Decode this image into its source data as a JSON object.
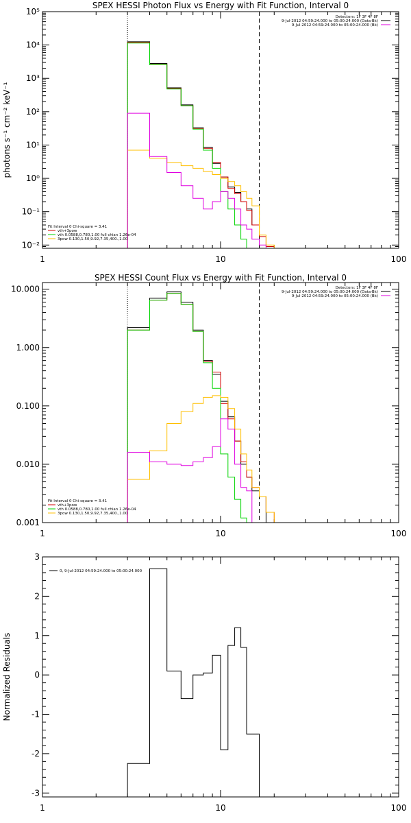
{
  "colors": {
    "data_total": "#000000",
    "data_black": "#000000",
    "model_total": "#d40000",
    "vth": "#00d400",
    "bpow": "#ffbf00",
    "other": "#e000e0",
    "background": "#ffffff"
  },
  "chart_data": [
    {
      "type": "line",
      "subtype": "step",
      "title": "SPEX HESSI Photon Flux vs Energy with Fit Function, Interval 0",
      "xlabel": "",
      "ylabel": "photons s⁻¹ cm⁻² keV⁻¹",
      "xscale": "log",
      "yscale": "log",
      "xlim": [
        1,
        100
      ],
      "ylim": [
        0.008,
        100000
      ],
      "x_ticks": [
        "1",
        "10",
        "100"
      ],
      "y_ticks": [
        "10⁻²",
        "10⁻¹",
        "10⁰",
        "10¹",
        "10²",
        "10³",
        "10⁴",
        "10⁵"
      ],
      "y_tick_values": [
        0.01,
        0.1,
        1,
        10,
        100,
        1000,
        10000,
        100000
      ],
      "vlines": [
        {
          "x": 3.0,
          "style": "dotted"
        },
        {
          "x": 16.5,
          "style": "dashed"
        }
      ],
      "edges": [
        3.0,
        4.0,
        5.0,
        6.0,
        7.0,
        8.0,
        9.0,
        10.0,
        11.0,
        12.0,
        13.0,
        14.0,
        15.0,
        16.5,
        18.0,
        20.0
      ],
      "series": [
        {
          "color_key": "data_black",
          "values": [
            12500,
            2800,
            520,
            160,
            33,
            8.5,
            2.8,
            1.1,
            0.55,
            0.38,
            0.2,
            0.12,
            0.04,
            null,
            null
          ]
        },
        {
          "color_key": "model_total",
          "values": [
            12000,
            2600,
            500,
            150,
            31,
            8.0,
            3.0,
            1.1,
            0.5,
            0.35,
            0.2,
            0.11,
            0.04,
            0.018,
            0.009
          ]
        },
        {
          "color_key": "vth",
          "values": [
            11500,
            2550,
            480,
            150,
            30,
            7.0,
            2.0,
            0.4,
            0.12,
            0.04,
            0.015,
            null,
            null,
            null,
            null
          ]
        },
        {
          "color_key": "bpow",
          "values": [
            7.0,
            4.0,
            3.0,
            2.4,
            2.0,
            1.6,
            1.3,
            1.0,
            0.8,
            0.6,
            0.4,
            0.25,
            0.15,
            0.02,
            0.01
          ]
        },
        {
          "color_key": "other",
          "values": [
            90,
            4.5,
            1.5,
            0.6,
            0.25,
            0.12,
            0.2,
            0.4,
            0.25,
            0.12,
            0.04,
            0.03,
            0.015,
            0.01,
            null
          ]
        }
      ],
      "legend_top": [
        {
          "text": "Detectors: 1F 3F 4F 8F",
          "color_key": null
        },
        {
          "text": "9-Jul-2012 04:59:24.000 to 05:00:24.000 (Data-Bk)",
          "color_key": "data_black"
        },
        {
          "text": "9-Jul-2012 04:59:24.000 to 05:00:24.000 (Bk)",
          "color_key": "other"
        }
      ],
      "legend_bottom": [
        {
          "text": "Fit Interval 0   Chi-square = 3.41",
          "color_key": null
        },
        {
          "text": "vth+3pow",
          "color_key": "model_total"
        },
        {
          "text": "vth 0.0588,0.780,1.00  full chian 1.26e-04",
          "color_key": "vth"
        },
        {
          "text": "3pow 0.130,1.50,9.92,7.35,400.,1.00",
          "color_key": "bpow"
        }
      ]
    },
    {
      "type": "line",
      "subtype": "step",
      "title": "SPEX HESSI Count Flux vs Energy with Fit Function, Interval 0",
      "xlabel": "",
      "ylabel": "",
      "xscale": "log",
      "yscale": "log",
      "xlim": [
        1,
        100
      ],
      "ylim": [
        0.001,
        13
      ],
      "x_ticks": [
        "1",
        "10",
        "100"
      ],
      "y_ticks": [
        "0.001",
        "0.010",
        "0.100",
        "1.000",
        "10.000"
      ],
      "y_tick_values": [
        0.001,
        0.01,
        0.1,
        1,
        10
      ],
      "vlines": [
        {
          "x": 3.0,
          "style": "dotted"
        },
        {
          "x": 16.5,
          "style": "dashed"
        }
      ],
      "edges": [
        3.0,
        4.0,
        5.0,
        6.0,
        7.0,
        8.0,
        9.0,
        10.0,
        11.0,
        12.0,
        13.0,
        14.0,
        15.0,
        16.5,
        18.0,
        20.0
      ],
      "series": [
        {
          "color_key": "data_black",
          "values": [
            2.2,
            7.0,
            9.0,
            6.0,
            2.0,
            0.6,
            0.35,
            0.12,
            0.065,
            0.025,
            0.01,
            0.006,
            0.0035,
            0.0028,
            null
          ]
        },
        {
          "color_key": "model_total",
          "values": [
            2.0,
            6.5,
            8.5,
            5.5,
            1.9,
            0.58,
            0.38,
            0.11,
            0.06,
            0.025,
            0.011,
            0.006,
            0.004,
            0.0028,
            0.0015
          ]
        },
        {
          "color_key": "vth",
          "values": [
            2.0,
            6.5,
            8.5,
            5.5,
            1.9,
            0.55,
            0.2,
            0.015,
            0.006,
            0.0025,
            0.0012,
            null,
            null,
            null,
            null
          ]
        },
        {
          "color_key": "bpow",
          "values": [
            0.0055,
            0.017,
            0.05,
            0.08,
            0.11,
            0.14,
            0.15,
            0.14,
            0.09,
            0.04,
            0.015,
            0.008,
            0.004,
            0.0028,
            0.0015
          ]
        },
        {
          "color_key": "other",
          "values": [
            0.016,
            0.011,
            0.01,
            0.0095,
            0.011,
            0.013,
            0.02,
            0.06,
            0.04,
            0.01,
            0.004,
            0.0035,
            null,
            null,
            null
          ]
        }
      ],
      "legend_top": [
        {
          "text": "Detectors: 1F 3F 4F 8F",
          "color_key": null
        },
        {
          "text": "9-Jul-2012 04:59:24.000 to 05:00:24.000 (Data-Bk)",
          "color_key": "data_black"
        },
        {
          "text": "9-Jul-2012 04:59:24.000 to 05:00:24.000 (Bk)",
          "color_key": "other"
        }
      ],
      "legend_bottom": [
        {
          "text": "Fit Interval 0   Chi-square = 3.41",
          "color_key": null
        },
        {
          "text": "vth+3pow",
          "color_key": "model_total"
        },
        {
          "text": "vth 0.0588,0.780,1.00  full chian 1.26e-04",
          "color_key": "vth"
        },
        {
          "text": "3pow 0.130,1.50,9.92,7.35,400.,1.00",
          "color_key": "bpow"
        }
      ]
    },
    {
      "type": "line",
      "subtype": "step",
      "title": "",
      "xlabel": "",
      "ylabel": "Normalized Residuals",
      "xscale": "log",
      "yscale": "linear",
      "xlim": [
        1,
        100
      ],
      "ylim": [
        -3.1,
        3.0
      ],
      "x_ticks": [
        "1",
        "10",
        "100"
      ],
      "y_ticks": [
        "-3",
        "-2",
        "-1",
        "0",
        "1",
        "2",
        "3"
      ],
      "y_tick_values": [
        -3,
        -2,
        -1,
        0,
        1,
        2,
        3
      ],
      "edges": [
        3.0,
        4.0,
        5.0,
        6.0,
        7.0,
        8.0,
        9.0,
        10.0,
        11.0,
        12.0,
        13.0,
        14.0,
        15.0,
        16.5
      ],
      "series": [
        {
          "color_key": "data_total",
          "values": [
            -2.25,
            2.7,
            0.1,
            -0.6,
            0.0,
            0.05,
            0.5,
            -1.9,
            0.75,
            1.2,
            0.7,
            -1.5,
            -1.5
          ]
        }
      ],
      "legend_top": [
        {
          "text": "0,  9-Jul-2012 04:59:24.000 to 05:00:24.000",
          "color_key": "data_total"
        }
      ],
      "legend_bottom": []
    }
  ]
}
